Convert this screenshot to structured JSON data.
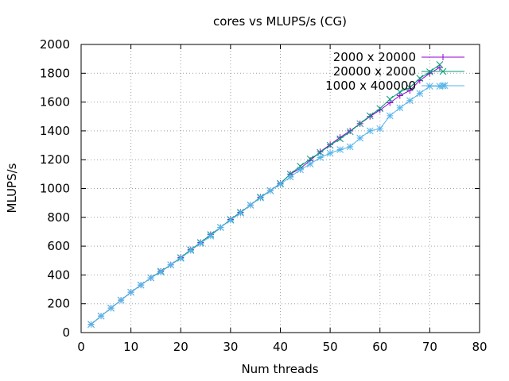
{
  "chart_data": {
    "type": "line",
    "title": "cores vs MLUPS/s (CG)",
    "xlabel": "Num threads",
    "ylabel": "MLUPS/s",
    "xlim": [
      0,
      80
    ],
    "ylim": [
      0,
      2000
    ],
    "x_ticks": [
      0,
      10,
      20,
      30,
      40,
      50,
      60,
      70,
      80
    ],
    "y_ticks": [
      0,
      200,
      400,
      600,
      800,
      1000,
      1200,
      1400,
      1600,
      1800,
      2000
    ],
    "grid": true,
    "legend_position": "top-right",
    "series": [
      {
        "name": "2000 x 20000",
        "color": "#9400d3",
        "marker": "plus",
        "x": [
          2,
          4,
          6,
          8,
          10,
          12,
          14,
          16,
          18,
          20,
          22,
          24,
          26,
          28,
          30,
          32,
          34,
          36,
          38,
          40,
          42,
          44,
          46,
          48,
          50,
          52,
          54,
          56,
          58,
          60,
          62,
          64,
          66,
          68,
          70,
          72
        ],
        "y": [
          57,
          115,
          170,
          225,
          280,
          330,
          380,
          425,
          470,
          520,
          575,
          625,
          680,
          730,
          785,
          835,
          885,
          940,
          985,
          1035,
          1100,
          1140,
          1195,
          1255,
          1305,
          1355,
          1400,
          1450,
          1500,
          1545,
          1595,
          1645,
          1680,
          1750,
          1800,
          1840
        ]
      },
      {
        "name": "20000 x 2000",
        "color": "#009e73",
        "marker": "cross",
        "x": [
          2,
          4,
          6,
          8,
          10,
          12,
          14,
          16,
          18,
          20,
          22,
          24,
          26,
          28,
          30,
          32,
          34,
          36,
          38,
          40,
          42,
          44,
          46,
          48,
          50,
          52,
          54,
          56,
          58,
          60,
          62,
          64,
          66,
          68,
          70,
          72
        ],
        "y": [
          57,
          115,
          170,
          225,
          280,
          330,
          380,
          425,
          470,
          520,
          575,
          625,
          680,
          730,
          785,
          835,
          885,
          940,
          985,
          1035,
          1100,
          1155,
          1205,
          1250,
          1300,
          1345,
          1395,
          1450,
          1505,
          1555,
          1620,
          1670,
          1700,
          1765,
          1810,
          1860
        ]
      },
      {
        "name": "1000 x 400000",
        "color": "#56b4e9",
        "marker": "star",
        "x": [
          2,
          4,
          6,
          8,
          10,
          12,
          14,
          16,
          18,
          20,
          22,
          24,
          26,
          28,
          30,
          32,
          34,
          36,
          38,
          40,
          42,
          44,
          46,
          48,
          50,
          52,
          54,
          56,
          58,
          60,
          62,
          64,
          66,
          68,
          70,
          72,
          73
        ],
        "y": [
          57,
          115,
          170,
          225,
          280,
          330,
          380,
          420,
          470,
          515,
          570,
          620,
          670,
          730,
          780,
          830,
          885,
          935,
          985,
          1030,
          1080,
          1130,
          1170,
          1215,
          1245,
          1270,
          1290,
          1350,
          1400,
          1415,
          1505,
          1560,
          1610,
          1660,
          1710,
          1710,
          1715
        ]
      }
    ]
  }
}
